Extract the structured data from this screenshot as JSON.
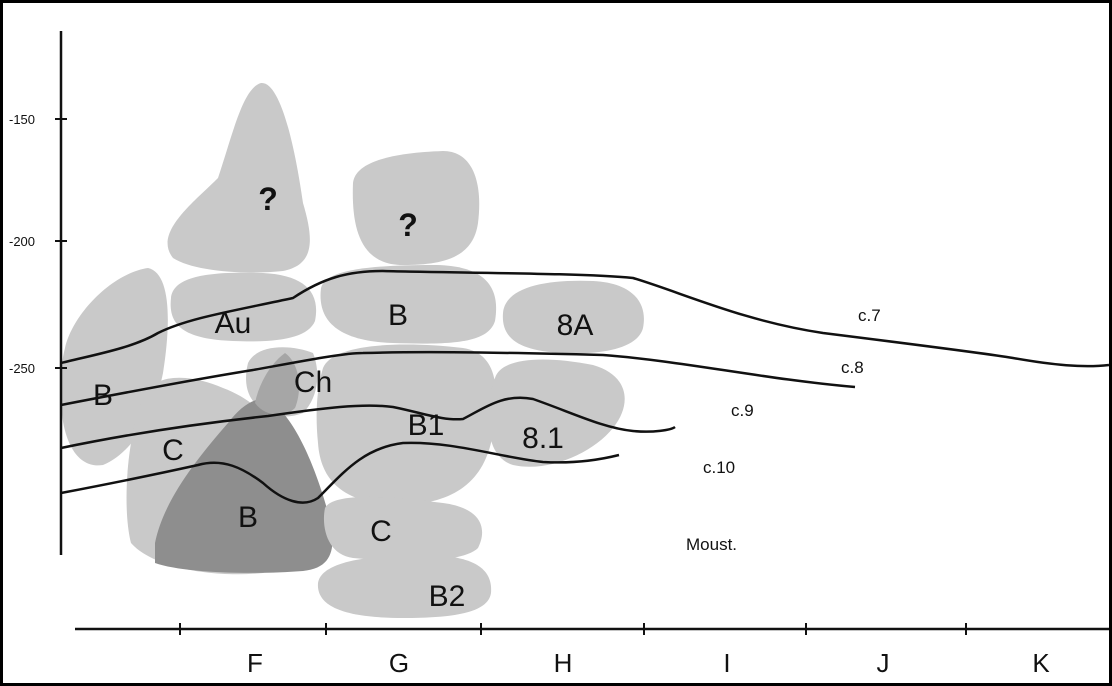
{
  "y_axis": {
    "ticks": [
      {
        "label": "-150",
        "value": -150
      },
      {
        "label": "-200",
        "value": -200
      },
      {
        "label": "-250",
        "value": -250
      }
    ]
  },
  "x_axis": {
    "squares": [
      "F",
      "G",
      "H",
      "I",
      "J",
      "K"
    ]
  },
  "blocks": {
    "q1": "?",
    "q2": "?",
    "au": "Au",
    "b_g": "B",
    "a8": "8A",
    "b_left": "B",
    "ch": "Ch",
    "b1": "B1",
    "e81": "8.1",
    "c_left": "C",
    "b_dark": "B",
    "c_g": "C",
    "b2": "B2"
  },
  "layers": {
    "c7": "c.7",
    "c8": "c.8",
    "c9": "c.9",
    "c10": "c.10",
    "moust": "Moust."
  },
  "colors": {
    "block_light": "#c9c9c9",
    "block_mid": "#b0b0b0",
    "block_dark": "#8e8e8e",
    "line": "#111111"
  }
}
